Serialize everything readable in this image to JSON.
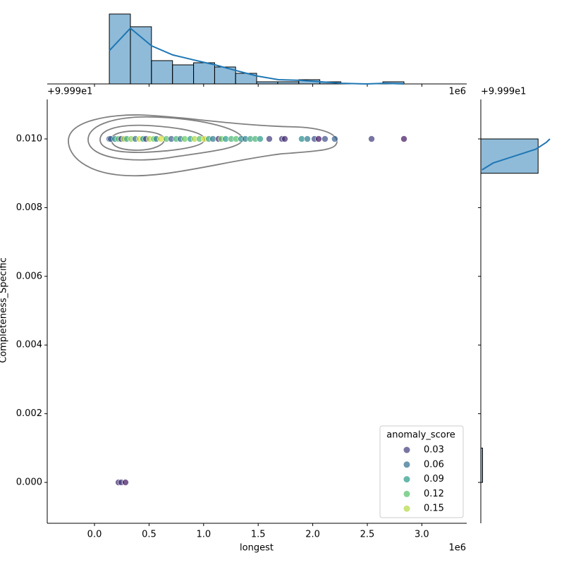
{
  "chart_data": [
    {
      "type": "scatter",
      "x_label": "longest",
      "y_label": "Completeness_Specific",
      "x_offset": "1e6",
      "y_offset": "+9.999e1",
      "xlim": [
        -0.433,
        3.411
      ],
      "ylim": [
        -0.00119,
        0.01115
      ],
      "xticks": [
        {
          "value": 0,
          "label": "0.0"
        },
        0.5,
        {
          "value": 1,
          "label": "1.0"
        },
        1.5,
        {
          "value": 2,
          "label": "2.0"
        },
        2.5,
        {
          "value": 3,
          "label": "3.0"
        }
      ],
      "yticks": [
        {
          "value": 0,
          "label": "0.000"
        },
        0.002,
        0.004,
        0.006,
        0.008,
        {
          "value": 0.01,
          "label": "0.010"
        }
      ],
      "colormap": [
        "#440154",
        "#3b528b",
        "#21918c",
        "#5ec962",
        "#fde725"
      ],
      "color_range": [
        0,
        0.17
      ],
      "alpha": 0.7,
      "series": [
        {
          "name": "points",
          "x": [
            0.136,
            0.149,
            0.187,
            0.22,
            0.245,
            0.271,
            0.297,
            0.336,
            0.375,
            0.413,
            0.446,
            0.472,
            0.504,
            0.543,
            0.568,
            0.607,
            0.659,
            0.704,
            0.749,
            0.788,
            0.827,
            0.879,
            0.917,
            0.963,
            1.008,
            1.047,
            1.085,
            1.137,
            1.163,
            1.202,
            1.253,
            1.298,
            1.344,
            1.382,
            1.428,
            1.473,
            1.518,
            1.602,
            1.718,
            1.744,
            1.899,
            1.951,
            2.016,
            2.054,
            2.112,
            2.202,
            2.539,
            2.836,
            0.22,
            0.245,
            0.284
          ],
          "y": [
            0.01,
            0.01,
            0.01,
            0.01,
            0.01,
            0.01,
            0.01,
            0.01,
            0.01,
            0.01,
            0.01,
            0.01,
            0.01,
            0.01,
            0.01,
            0.01,
            0.01,
            0.01,
            0.01,
            0.01,
            0.01,
            0.01,
            0.01,
            0.01,
            0.01,
            0.01,
            0.01,
            0.01,
            0.01,
            0.01,
            0.01,
            0.01,
            0.01,
            0.01,
            0.01,
            0.01,
            0.01,
            0.01,
            0.01,
            0.01,
            0.01,
            0.01,
            0.01,
            0.01,
            0.01,
            0.01,
            0.01,
            0.01,
            0,
            0,
            0
          ],
          "score": [
            0.04,
            0.05,
            0.08,
            0.12,
            0.03,
            0.15,
            0.1,
            0.14,
            0.06,
            0.16,
            0.09,
            0.03,
            0.15,
            0.13,
            0.07,
            0.16,
            0.12,
            0.05,
            0.11,
            0.06,
            0.13,
            0.09,
            0.15,
            0.12,
            0.16,
            0.1,
            0.07,
            0.02,
            0.13,
            0.09,
            0.11,
            0.12,
            0.08,
            0.07,
            0.1,
            0.11,
            0.09,
            0.03,
            0.03,
            0.02,
            0.08,
            0.07,
            0.04,
            0.01,
            0.04,
            0.05,
            0.03,
            0.01,
            0.02,
            0.03,
            0.01
          ]
        }
      ],
      "legend": {
        "title": "anomaly_score",
        "values": [
          0.03,
          0.06,
          0.09,
          0.12,
          0.15
        ],
        "corner": "lower right"
      }
    },
    {
      "type": "histogram",
      "orientation": "vertical",
      "color": "#1f77b4",
      "bins": [
        0.136,
        0.329,
        0.522,
        0.715,
        0.908,
        1.101,
        1.293,
        1.486,
        1.679,
        1.872,
        2.065,
        2.258,
        2.451,
        2.643,
        2.836
      ],
      "counts": [
        33,
        27,
        11,
        9,
        10,
        8,
        5,
        1,
        1,
        2,
        1,
        0,
        0,
        1
      ],
      "kde": {
        "x": [
          0.136,
          0.329,
          0.522,
          0.717,
          0.911,
          1.105,
          1.298,
          1.492,
          1.686,
          1.88,
          2.074,
          2.267,
          2.494,
          2.655,
          2.836
        ],
        "y": [
          15.7,
          26.3,
          18,
          13.7,
          11.3,
          9,
          6.3,
          3.7,
          2,
          1.7,
          1,
          0.3,
          0,
          0.3,
          0
        ]
      },
      "ylim": [
        0,
        36.3
      ]
    },
    {
      "type": "histogram",
      "orientation": "horizontal",
      "color": "#1f77b4",
      "bins": [
        0,
        0.001,
        0.002,
        0.003,
        0.004,
        0.005,
        0.006,
        0.007,
        0.008,
        0.009,
        0.01
      ],
      "counts": [
        3,
        0,
        0,
        0,
        0,
        0,
        0,
        0,
        0,
        97
      ],
      "kde": {
        "x": [
          2,
          21,
          57,
          93,
          111,
          117
        ],
        "y": [
          0.0091,
          0.0093,
          0.0095,
          0.0097,
          0.0099,
          0.01
        ]
      },
      "xlim": [
        0,
        117
      ]
    }
  ]
}
